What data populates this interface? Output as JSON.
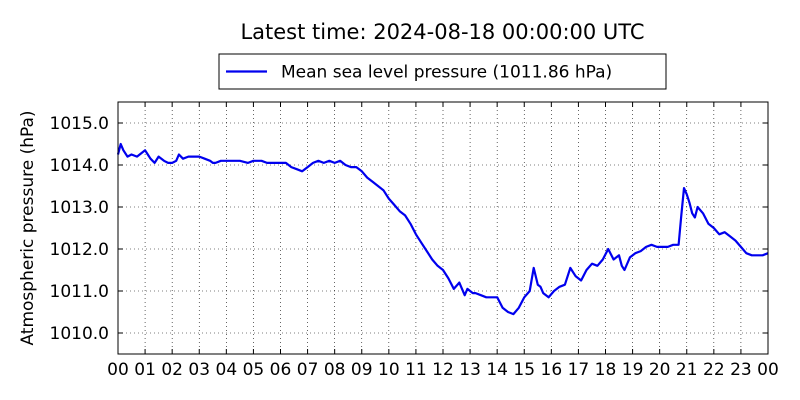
{
  "chart_data": {
    "type": "line",
    "title": "Latest time: 2024-08-18 00:00:00 UTC",
    "ylabel": "Atmospheric pressure (hPa)",
    "xlabel": "",
    "xlim": [
      0,
      24
    ],
    "ylim": [
      1009.5,
      1015.5
    ],
    "x_ticks": [
      "00",
      "01",
      "02",
      "03",
      "04",
      "05",
      "06",
      "07",
      "08",
      "09",
      "10",
      "11",
      "12",
      "13",
      "14",
      "15",
      "16",
      "17",
      "18",
      "19",
      "20",
      "21",
      "22",
      "23",
      "00"
    ],
    "y_ticks": [
      "1010.0",
      "1011.0",
      "1012.0",
      "1013.0",
      "1014.0",
      "1015.0"
    ],
    "y_tick_values": [
      1010,
      1011,
      1012,
      1013,
      1014,
      1015
    ],
    "grid": true,
    "legend_position": "top-center",
    "series": [
      {
        "name": "Mean sea level pressure (1011.86 hPa)",
        "color": "#0000ee",
        "x": [
          0,
          0.1,
          0.2,
          0.35,
          0.5,
          0.7,
          0.9,
          1.0,
          1.1,
          1.2,
          1.35,
          1.5,
          1.7,
          1.85,
          2.0,
          2.15,
          2.25,
          2.4,
          2.6,
          2.8,
          3.0,
          3.2,
          3.4,
          3.5,
          3.6,
          3.8,
          4.0,
          4.2,
          4.5,
          4.8,
          5.0,
          5.3,
          5.5,
          5.8,
          6.0,
          6.2,
          6.4,
          6.6,
          6.8,
          7.0,
          7.2,
          7.4,
          7.6,
          7.8,
          8.0,
          8.2,
          8.4,
          8.6,
          8.8,
          9.0,
          9.2,
          9.4,
          9.6,
          9.8,
          10.0,
          10.2,
          10.4,
          10.6,
          10.8,
          11.0,
          11.2,
          11.4,
          11.6,
          11.8,
          12.0,
          12.2,
          12.4,
          12.6,
          12.8,
          12.9,
          13.0,
          13.1,
          13.2,
          13.4,
          13.6,
          13.8,
          14.0,
          14.2,
          14.4,
          14.6,
          14.8,
          15.0,
          15.2,
          15.35,
          15.5,
          15.6,
          15.7,
          15.9,
          16.1,
          16.3,
          16.5,
          16.7,
          16.9,
          17.1,
          17.3,
          17.5,
          17.7,
          17.9,
          18.1,
          18.3,
          18.5,
          18.6,
          18.7,
          18.9,
          19.1,
          19.3,
          19.5,
          19.7,
          19.9,
          20.1,
          20.3,
          20.5,
          20.7,
          20.8,
          20.9,
          21.0,
          21.1,
          21.2,
          21.3,
          21.4,
          21.6,
          21.8,
          22.0,
          22.2,
          22.4,
          22.6,
          22.8,
          23.0,
          23.2,
          23.4,
          23.6,
          23.8,
          24.0
        ],
        "y": [
          1014.25,
          1014.5,
          1014.35,
          1014.2,
          1014.25,
          1014.2,
          1014.3,
          1014.35,
          1014.25,
          1014.15,
          1014.05,
          1014.2,
          1014.1,
          1014.05,
          1014.05,
          1014.1,
          1014.25,
          1014.15,
          1014.2,
          1014.2,
          1014.2,
          1014.15,
          1014.1,
          1014.05,
          1014.05,
          1014.1,
          1014.1,
          1014.1,
          1014.1,
          1014.05,
          1014.1,
          1014.1,
          1014.05,
          1014.05,
          1014.05,
          1014.05,
          1013.95,
          1013.9,
          1013.85,
          1013.95,
          1014.05,
          1014.1,
          1014.05,
          1014.1,
          1014.05,
          1014.1,
          1014.0,
          1013.95,
          1013.95,
          1013.85,
          1013.7,
          1013.6,
          1013.5,
          1013.4,
          1013.2,
          1013.05,
          1012.9,
          1012.8,
          1012.6,
          1012.35,
          1012.15,
          1011.95,
          1011.75,
          1011.6,
          1011.5,
          1011.3,
          1011.05,
          1011.2,
          1010.9,
          1011.05,
          1011.0,
          1010.95,
          1010.95,
          1010.9,
          1010.85,
          1010.85,
          1010.85,
          1010.6,
          1010.5,
          1010.45,
          1010.6,
          1010.85,
          1011.0,
          1011.55,
          1011.15,
          1011.1,
          1010.95,
          1010.85,
          1011.0,
          1011.1,
          1011.15,
          1011.55,
          1011.35,
          1011.25,
          1011.5,
          1011.65,
          1011.6,
          1011.75,
          1012.0,
          1011.75,
          1011.85,
          1011.6,
          1011.5,
          1011.8,
          1011.9,
          1011.95,
          1012.05,
          1012.1,
          1012.05,
          1012.05,
          1012.05,
          1012.1,
          1012.1,
          1012.8,
          1013.45,
          1013.3,
          1013.1,
          1012.85,
          1012.75,
          1013.0,
          1012.85,
          1012.6,
          1012.5,
          1012.35,
          1012.4,
          1012.3,
          1012.2,
          1012.05,
          1011.9,
          1011.85,
          1011.85,
          1011.85,
          1011.9
        ]
      }
    ]
  }
}
